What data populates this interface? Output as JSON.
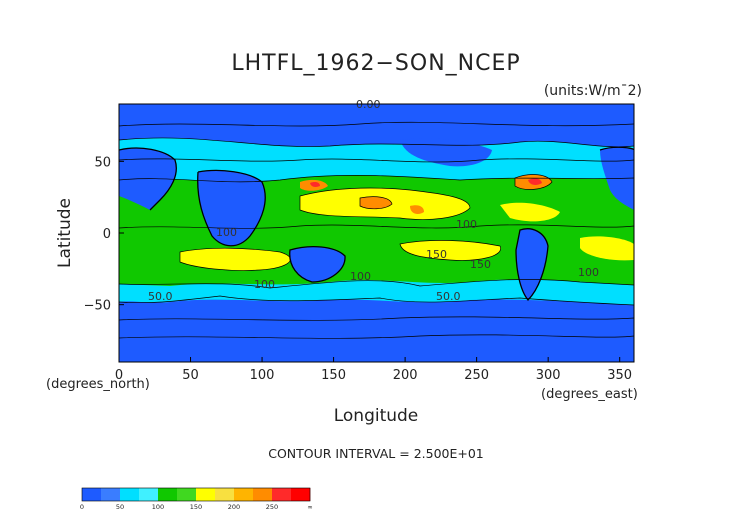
{
  "chart_data": {
    "type": "heatmap",
    "title": "LHTFL_1962−SON_NCEP",
    "units": "(units:W/m¯2)",
    "xlabel": "Longitude",
    "ylabel": "Latitude",
    "x_unit_label": "(degrees_east)",
    "y_unit_label": "(degrees_north)",
    "xlim": [
      0,
      360
    ],
    "ylim": [
      -90,
      90
    ],
    "x_ticks": [
      "0",
      "50",
      "100",
      "150",
      "200",
      "250",
      "300",
      "350"
    ],
    "y_ticks": [
      "50",
      "0",
      "−50"
    ],
    "contour_interval_text": "CONTOUR INTERVAL = 2.500E+01",
    "top_label": "0.00",
    "contour_labels": [
      "100",
      "100",
      "150",
      "150",
      "100",
      "100",
      "50.0",
      "50.0",
      "100"
    ],
    "colorbar": {
      "labels": [
        "0",
        "50",
        "100",
        "150",
        "200",
        "250",
        "∞"
      ],
      "levels": [
        0,
        25,
        50,
        75,
        100,
        125,
        150,
        175,
        200,
        225,
        250,
        275
      ],
      "colors": [
        "#1e5bff",
        "#3a7dff",
        "#00dfff",
        "#40f0ff",
        "#10c800",
        "#40d820",
        "#ffff00",
        "#f8e040",
        "#ffb400",
        "#ff8c00",
        "#ff2a2a",
        "#ff0000"
      ]
    }
  }
}
